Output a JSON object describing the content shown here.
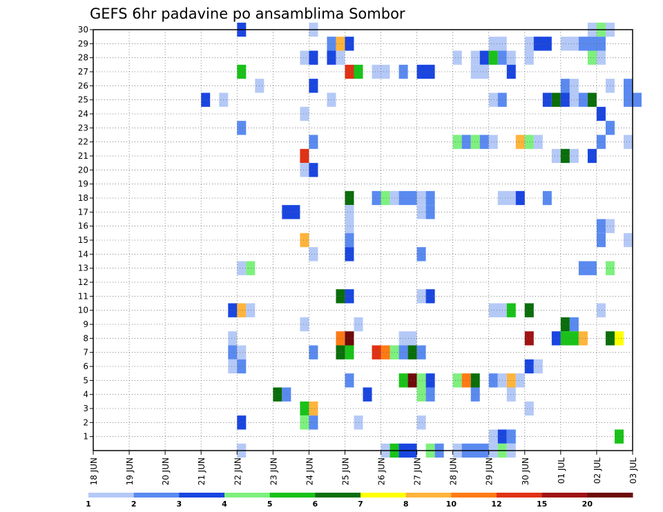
{
  "chart_data": {
    "type": "heatmap",
    "title": "GEFS 6hr padavine po ansamblima Sombor",
    "xlabel": "",
    "ylabel": "",
    "x_ticks": [
      "18 JUN",
      "19 JUN",
      "20 JUN",
      "21 JUN",
      "22 JUN",
      "23 JUN",
      "24 JUN",
      "25 JUN",
      "26 JUN",
      "27 JUN",
      "28 JUN",
      "29 JUN",
      "30 JUN",
      "01 JUL",
      "02 JUL",
      "03 JUL"
    ],
    "y_ticks": [
      1,
      2,
      3,
      4,
      5,
      6,
      7,
      8,
      9,
      10,
      11,
      12,
      13,
      14,
      15,
      16,
      17,
      18,
      19,
      20,
      21,
      22,
      23,
      24,
      25,
      26,
      27,
      28,
      29,
      30
    ],
    "x_range_days": [
      0,
      15
    ],
    "y_range": [
      0,
      30
    ],
    "grid": true,
    "colorbar": {
      "labels": [
        "1",
        "2",
        "3",
        "4",
        "5",
        "6",
        "7",
        "8",
        "10",
        "12",
        "15",
        "20"
      ],
      "colors": [
        "#b5c9f7",
        "#5a8af0",
        "#1a46e0",
        "#7ef07e",
        "#19c219",
        "#0a6e0a",
        "#ffff00",
        "#ffb43c",
        "#ff7a14",
        "#e03214",
        "#a01414",
        "#6e0a0a"
      ]
    },
    "cells_note": "each cell: [member, start_day_since_18_JUN, duration_days, color_class]",
    "cells": [
      [
        30,
        4.0,
        0.25,
        2
      ],
      [
        30,
        6.0,
        0.25,
        0
      ],
      [
        30,
        13.75,
        0.25,
        0
      ],
      [
        30,
        14.0,
        0.25,
        3
      ],
      [
        30,
        14.25,
        0.25,
        0
      ],
      [
        29,
        6.5,
        0.25,
        1
      ],
      [
        29,
        6.75,
        0.25,
        7
      ],
      [
        29,
        7.0,
        0.25,
        2
      ],
      [
        29,
        11.0,
        0.5,
        0
      ],
      [
        29,
        12.0,
        0.25,
        0
      ],
      [
        29,
        12.25,
        0.5,
        2
      ],
      [
        29,
        13.0,
        0.5,
        0
      ],
      [
        29,
        13.5,
        0.75,
        1
      ],
      [
        28,
        5.75,
        0.25,
        0
      ],
      [
        28,
        6.0,
        0.25,
        2
      ],
      [
        28,
        6.5,
        0.25,
        2
      ],
      [
        28,
        6.75,
        0.25,
        0
      ],
      [
        28,
        10.0,
        0.25,
        0
      ],
      [
        28,
        10.5,
        0.25,
        0
      ],
      [
        28,
        10.75,
        0.25,
        2
      ],
      [
        28,
        11.0,
        0.25,
        4
      ],
      [
        28,
        11.25,
        0.25,
        1
      ],
      [
        28,
        11.5,
        0.25,
        0
      ],
      [
        28,
        12.0,
        0.25,
        0
      ],
      [
        28,
        13.75,
        0.25,
        3
      ],
      [
        28,
        14.0,
        0.25,
        0
      ],
      [
        27,
        4.0,
        0.25,
        4
      ],
      [
        27,
        7.0,
        0.25,
        9
      ],
      [
        27,
        7.25,
        0.25,
        4
      ],
      [
        27,
        7.75,
        0.5,
        0
      ],
      [
        27,
        8.5,
        0.25,
        1
      ],
      [
        27,
        9.0,
        0.5,
        2
      ],
      [
        27,
        10.5,
        0.5,
        0
      ],
      [
        27,
        11.5,
        0.25,
        2
      ],
      [
        26,
        4.5,
        0.25,
        0
      ],
      [
        26,
        6.0,
        0.25,
        2
      ],
      [
        26,
        13.0,
        0.25,
        1
      ],
      [
        26,
        13.25,
        0.25,
        0
      ],
      [
        26,
        14.25,
        0.25,
        0
      ],
      [
        26,
        14.75,
        0.25,
        1
      ],
      [
        25,
        3.0,
        0.25,
        2
      ],
      [
        25,
        3.5,
        0.25,
        0
      ],
      [
        25,
        6.5,
        0.25,
        0
      ],
      [
        25,
        11.0,
        0.25,
        0
      ],
      [
        25,
        11.25,
        0.25,
        1
      ],
      [
        25,
        12.5,
        0.25,
        2
      ],
      [
        25,
        12.75,
        0.25,
        5
      ],
      [
        25,
        13.0,
        0.25,
        2
      ],
      [
        25,
        13.25,
        0.25,
        0
      ],
      [
        25,
        13.5,
        0.25,
        1
      ],
      [
        25,
        13.75,
        0.25,
        5
      ],
      [
        25,
        14.75,
        0.5,
        1
      ],
      [
        24,
        5.75,
        0.25,
        0
      ],
      [
        24,
        14.0,
        0.25,
        2
      ],
      [
        23,
        4.0,
        0.25,
        1
      ],
      [
        23,
        14.25,
        0.25,
        1
      ],
      [
        22,
        6.0,
        0.25,
        1
      ],
      [
        22,
        10.0,
        0.25,
        3
      ],
      [
        22,
        10.25,
        0.25,
        1
      ],
      [
        22,
        10.5,
        0.25,
        3
      ],
      [
        22,
        10.75,
        0.25,
        1
      ],
      [
        22,
        11.0,
        0.25,
        0
      ],
      [
        22,
        11.75,
        0.25,
        7
      ],
      [
        22,
        12.0,
        0.25,
        3
      ],
      [
        22,
        12.25,
        0.25,
        0
      ],
      [
        22,
        14.0,
        0.25,
        1
      ],
      [
        22,
        14.75,
        0.25,
        0
      ],
      [
        21,
        5.75,
        0.25,
        9
      ],
      [
        21,
        12.75,
        0.25,
        0
      ],
      [
        21,
        13.0,
        0.25,
        5
      ],
      [
        21,
        13.25,
        0.25,
        0
      ],
      [
        21,
        13.75,
        0.25,
        2
      ],
      [
        20,
        5.75,
        0.25,
        0
      ],
      [
        20,
        6.0,
        0.25,
        2
      ],
      [
        18,
        7.0,
        0.25,
        5
      ],
      [
        18,
        7.75,
        0.25,
        1
      ],
      [
        18,
        8.0,
        0.25,
        3
      ],
      [
        18,
        8.25,
        0.25,
        0
      ],
      [
        18,
        8.5,
        0.5,
        1
      ],
      [
        18,
        9.0,
        0.25,
        0
      ],
      [
        18,
        9.25,
        0.25,
        1
      ],
      [
        18,
        11.25,
        0.5,
        0
      ],
      [
        18,
        11.75,
        0.25,
        2
      ],
      [
        18,
        12.5,
        0.25,
        1
      ],
      [
        17,
        5.25,
        0.5,
        2
      ],
      [
        17,
        7.0,
        0.25,
        0
      ],
      [
        17,
        9.0,
        0.25,
        0
      ],
      [
        17,
        9.25,
        0.25,
        1
      ],
      [
        16,
        7.0,
        0.25,
        0
      ],
      [
        16,
        14.0,
        0.25,
        1
      ],
      [
        16,
        14.25,
        0.25,
        0
      ],
      [
        15,
        5.75,
        0.25,
        7
      ],
      [
        15,
        7.0,
        0.25,
        1
      ],
      [
        15,
        14.0,
        0.25,
        1
      ],
      [
        15,
        14.75,
        0.25,
        0
      ],
      [
        14,
        6.0,
        0.25,
        0
      ],
      [
        14,
        7.0,
        0.25,
        2
      ],
      [
        14,
        9.0,
        0.25,
        1
      ],
      [
        13,
        4.0,
        0.25,
        0
      ],
      [
        13,
        4.25,
        0.25,
        3
      ],
      [
        13,
        13.5,
        0.5,
        1
      ],
      [
        13,
        14.25,
        0.25,
        3
      ],
      [
        11,
        6.75,
        0.25,
        5
      ],
      [
        11,
        7.0,
        0.25,
        2
      ],
      [
        11,
        9.0,
        0.25,
        0
      ],
      [
        11,
        9.25,
        0.25,
        2
      ],
      [
        10,
        3.75,
        0.25,
        2
      ],
      [
        10,
        4.0,
        0.25,
        7
      ],
      [
        10,
        4.25,
        0.25,
        0
      ],
      [
        10,
        11.0,
        0.5,
        0
      ],
      [
        10,
        11.5,
        0.25,
        4
      ],
      [
        10,
        12.0,
        0.25,
        5
      ],
      [
        10,
        14.0,
        0.25,
        0
      ],
      [
        9,
        5.75,
        0.25,
        0
      ],
      [
        9,
        7.25,
        0.25,
        0
      ],
      [
        9,
        13.0,
        0.25,
        5
      ],
      [
        9,
        13.25,
        0.25,
        1
      ],
      [
        8,
        3.75,
        0.25,
        0
      ],
      [
        8,
        6.75,
        0.25,
        8
      ],
      [
        8,
        7.0,
        0.25,
        11
      ],
      [
        8,
        8.5,
        0.5,
        0
      ],
      [
        8,
        12.0,
        0.25,
        10
      ],
      [
        8,
        12.75,
        0.25,
        2
      ],
      [
        8,
        13.0,
        0.5,
        4
      ],
      [
        8,
        13.5,
        0.25,
        7
      ],
      [
        8,
        14.25,
        0.25,
        5
      ],
      [
        8,
        14.5,
        0.25,
        6
      ],
      [
        7,
        3.75,
        0.25,
        1
      ],
      [
        7,
        4.0,
        0.25,
        0
      ],
      [
        7,
        6.0,
        0.25,
        1
      ],
      [
        7,
        6.75,
        0.25,
        5
      ],
      [
        7,
        7.0,
        0.25,
        4
      ],
      [
        7,
        7.75,
        0.25,
        9
      ],
      [
        7,
        8.0,
        0.25,
        8
      ],
      [
        7,
        8.25,
        0.25,
        3
      ],
      [
        7,
        8.5,
        0.25,
        1
      ],
      [
        7,
        8.75,
        0.25,
        5
      ],
      [
        7,
        9.0,
        0.25,
        1
      ],
      [
        6,
        3.75,
        0.25,
        0
      ],
      [
        6,
        4.0,
        0.25,
        1
      ],
      [
        6,
        12.0,
        0.25,
        2
      ],
      [
        6,
        12.25,
        0.25,
        0
      ],
      [
        5,
        7.0,
        0.25,
        1
      ],
      [
        5,
        8.5,
        0.25,
        4
      ],
      [
        5,
        8.75,
        0.25,
        11
      ],
      [
        5,
        9.0,
        0.25,
        3
      ],
      [
        5,
        9.25,
        0.25,
        2
      ],
      [
        5,
        10.0,
        0.25,
        3
      ],
      [
        5,
        10.25,
        0.25,
        8
      ],
      [
        5,
        10.5,
        0.25,
        5
      ],
      [
        5,
        11.0,
        0.25,
        1
      ],
      [
        5,
        11.25,
        0.25,
        0
      ],
      [
        5,
        11.5,
        0.25,
        7
      ],
      [
        5,
        11.75,
        0.25,
        0
      ],
      [
        4,
        5.0,
        0.25,
        5
      ],
      [
        4,
        5.25,
        0.25,
        1
      ],
      [
        4,
        7.5,
        0.25,
        2
      ],
      [
        4,
        9.0,
        0.25,
        3
      ],
      [
        4,
        9.25,
        0.25,
        1
      ],
      [
        4,
        10.5,
        0.25,
        1
      ],
      [
        4,
        11.5,
        0.25,
        0
      ],
      [
        3,
        5.75,
        0.25,
        4
      ],
      [
        3,
        6.0,
        0.25,
        7
      ],
      [
        3,
        12.0,
        0.25,
        0
      ],
      [
        2,
        4.0,
        0.25,
        2
      ],
      [
        2,
        5.75,
        0.25,
        3
      ],
      [
        2,
        6.0,
        0.25,
        1
      ],
      [
        2,
        7.25,
        0.25,
        0
      ],
      [
        2,
        9.0,
        0.25,
        0
      ],
      [
        1,
        11.0,
        0.25,
        0
      ],
      [
        1,
        11.25,
        0.25,
        2
      ],
      [
        1,
        11.5,
        0.25,
        1
      ],
      [
        1,
        14.5,
        0.25,
        4
      ],
      [
        0,
        4.0,
        0.25,
        0
      ],
      [
        0,
        8.0,
        0.25,
        0
      ],
      [
        0,
        8.25,
        0.25,
        4
      ],
      [
        0,
        8.5,
        0.5,
        2
      ],
      [
        0,
        9.25,
        0.25,
        3
      ],
      [
        0,
        9.5,
        0.25,
        1
      ],
      [
        0,
        10.0,
        0.25,
        0
      ],
      [
        0,
        10.25,
        0.75,
        1
      ],
      [
        0,
        11.0,
        0.25,
        0
      ],
      [
        0,
        11.25,
        0.25,
        3
      ],
      [
        0,
        11.5,
        0.25,
        0
      ]
    ]
  }
}
